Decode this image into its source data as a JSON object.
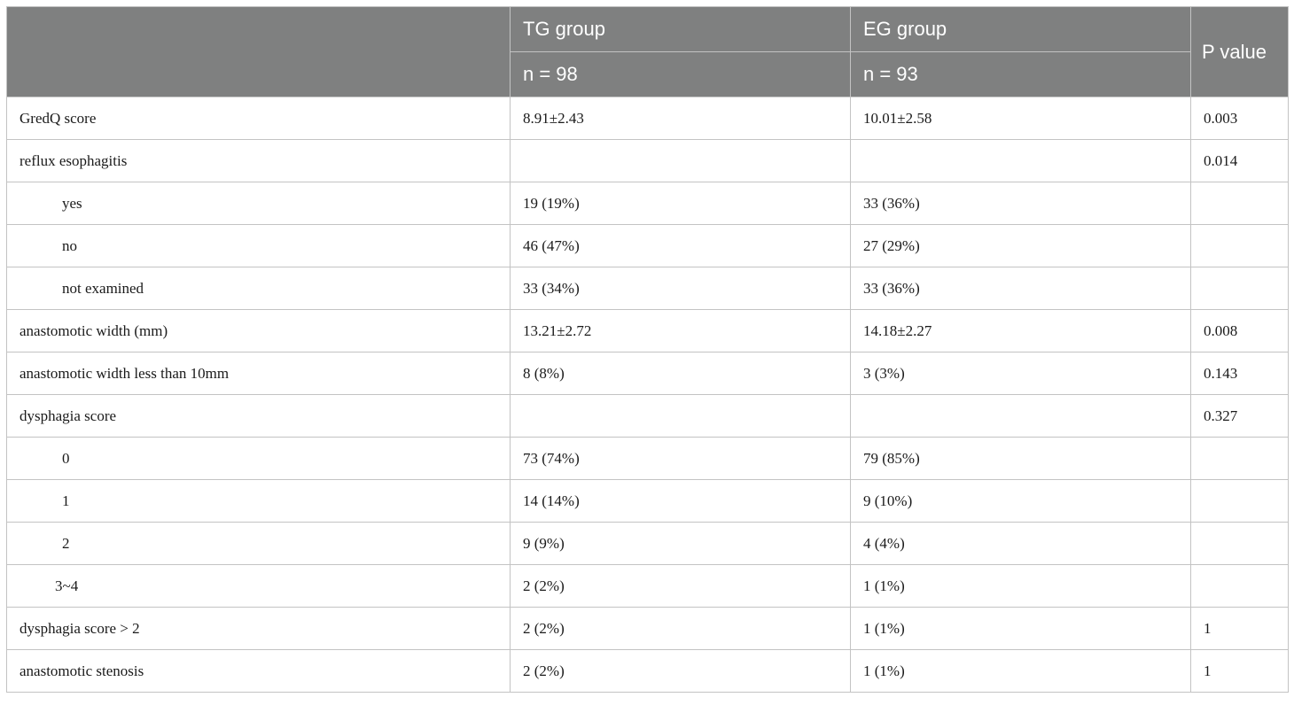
{
  "header": {
    "col1_group": "TG group",
    "col1_n": "n = 98",
    "col2_group": "EG group",
    "col2_n": "n = 93",
    "col3": "P value"
  },
  "rows": [
    {
      "label": "GredQ score",
      "tg": "8.91±2.43",
      "eg": "10.01±2.58",
      "p": "0.003",
      "indent": 0
    },
    {
      "label": "reflux esophagitis",
      "tg": "",
      "eg": "",
      "p": "0.014",
      "indent": 0
    },
    {
      "label": "yes",
      "tg": "19 (19%)",
      "eg": "33 (36%)",
      "p": "",
      "indent": 1
    },
    {
      "label": "no",
      "tg": "46 (47%)",
      "eg": "27 (29%)",
      "p": "",
      "indent": 1
    },
    {
      "label": "not examined",
      "tg": "33 (34%)",
      "eg": "33 (36%)",
      "p": "",
      "indent": 1
    },
    {
      "label": "anastomotic width (mm)",
      "tg": "13.21±2.72",
      "eg": "14.18±2.27",
      "p": "0.008",
      "indent": 0
    },
    {
      "label": "anastomotic width less than 10mm",
      "tg": "8 (8%)",
      "eg": "3 (3%)",
      "p": "0.143",
      "indent": 0
    },
    {
      "label": "dysphagia score",
      "tg": "",
      "eg": "",
      "p": "0.327",
      "indent": 0
    },
    {
      "label": "0",
      "tg": "73 (74%)",
      "eg": "79 (85%)",
      "p": "",
      "indent": 1
    },
    {
      "label": "1",
      "tg": "14 (14%)",
      "eg": "9 (10%)",
      "p": "",
      "indent": 1
    },
    {
      "label": "2",
      "tg": "9 (9%)",
      "eg": "4 (4%)",
      "p": "",
      "indent": 1
    },
    {
      "label": "3~4",
      "tg": "2 (2%)",
      "eg": "1 (1%)",
      "p": "",
      "indent": 2
    },
    {
      "label": "dysphagia score > 2",
      "tg": "2 (2%)",
      "eg": "1 (1%)",
      "p": "1",
      "indent": 0
    },
    {
      "label": "anastomotic stenosis",
      "tg": "2 (2%)",
      "eg": "1 (1%)",
      "p": "1",
      "indent": 0
    }
  ]
}
